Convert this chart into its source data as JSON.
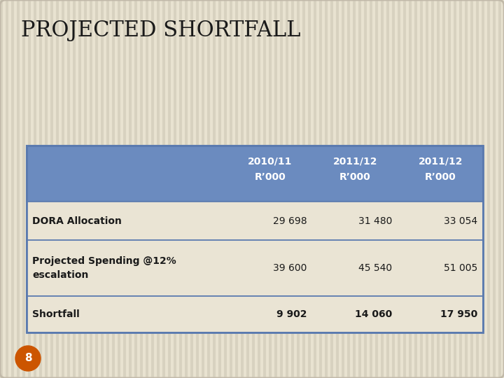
{
  "title": "PROJECTED SHORTFALL",
  "title_fontsize": 22,
  "title_color": "#1A1A1A",
  "background_color": "#E8E2D0",
  "stripe_color": "#D8D2C0",
  "header_bg": "#6B8BBF",
  "header_text_color": "#FFFFFF",
  "row_bg": "#EAE4D4",
  "border_color": "#5A7AAF",
  "text_color": "#1A1A1A",
  "badge_bg": "#CC5500",
  "badge_text": "8",
  "badge_text_color": "#FFFFFF",
  "col_headers": [
    [
      "2010/11",
      "R’000"
    ],
    [
      "2011/12",
      "R’000"
    ],
    [
      "2011/12",
      "R’000"
    ]
  ],
  "rows": [
    {
      "label": "DORA Allocation",
      "values": [
        "29 698",
        "31 480",
        "33 054"
      ],
      "bold_label": true,
      "bold_values": false,
      "label_lines": 1
    },
    {
      "label": "Projected Spending @12%\nescalation",
      "values": [
        "39 600",
        "45 540",
        "51 005"
      ],
      "bold_label": true,
      "bold_values": false,
      "label_lines": 2
    },
    {
      "label": "Shortfall",
      "values": [
        "9 902",
        "14 060",
        "17 950"
      ],
      "bold_label": true,
      "bold_values": true,
      "label_lines": 1
    }
  ]
}
